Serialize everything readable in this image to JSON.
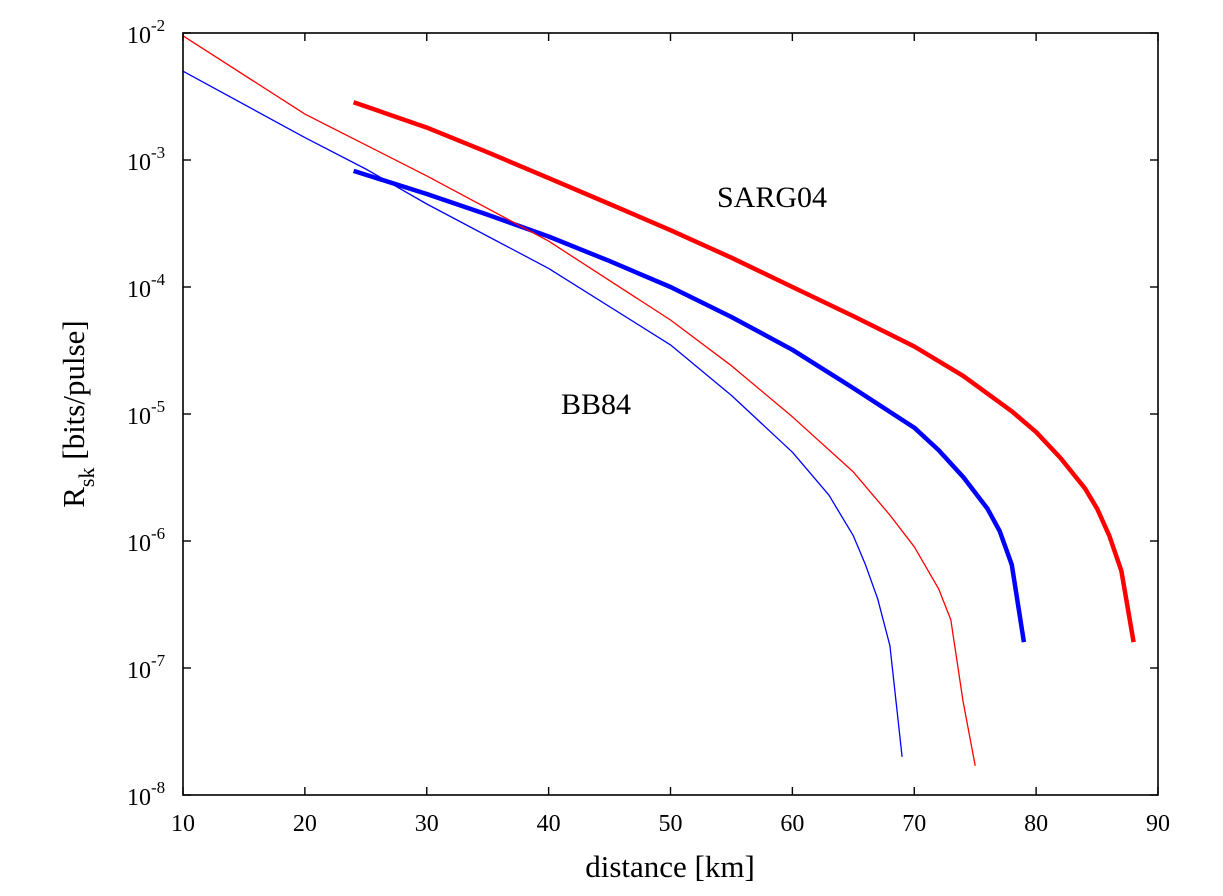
{
  "chart_data": {
    "type": "line",
    "xlabel": "distance [km]",
    "ylabel": {
      "main": "R",
      "subscript": "sk",
      "rest": " [bits/pulse]"
    },
    "xlim": [
      10,
      90
    ],
    "ylim": [
      1e-08,
      0.01
    ],
    "yscale": "log",
    "grid": false,
    "legend": "none",
    "x_ticks": [
      "10",
      "20",
      "30",
      "40",
      "50",
      "60",
      "70",
      "80",
      "90"
    ],
    "y_ticks": [
      {
        "base": "10",
        "exp": "-8",
        "value": 1e-08
      },
      {
        "base": "10",
        "exp": "-7",
        "value": 1e-07
      },
      {
        "base": "10",
        "exp": "-6",
        "value": 1e-06
      },
      {
        "base": "10",
        "exp": "-5",
        "value": 1e-05
      },
      {
        "base": "10",
        "exp": "-4",
        "value": 0.0001
      },
      {
        "base": "10",
        "exp": "-3",
        "value": 0.001
      },
      {
        "base": "10",
        "exp": "-2",
        "value": 0.01
      }
    ],
    "annotations": [
      {
        "id": "sarg",
        "text": "SARG04",
        "x": 62,
        "y": 0.00045
      },
      {
        "id": "bb84",
        "text": "BB84",
        "x": 46,
        "y": 1.05e-05
      }
    ],
    "series": [
      {
        "id": "sarg-thick",
        "color": "#ff0000",
        "width": 4.5,
        "points": [
          [
            24,
            0.00285
          ],
          [
            30,
            0.0018
          ],
          [
            35,
            0.00115
          ],
          [
            40,
            0.00072
          ],
          [
            45,
            0.00045
          ],
          [
            50,
            0.00028
          ],
          [
            55,
            0.00017
          ],
          [
            60,
            0.0001
          ],
          [
            65,
            5.9e-05
          ],
          [
            70,
            3.4e-05
          ],
          [
            74,
            2e-05
          ],
          [
            78,
            1.05e-05
          ],
          [
            80,
            7.2e-06
          ],
          [
            82,
            4.5e-06
          ],
          [
            84,
            2.6e-06
          ],
          [
            85,
            1.8e-06
          ],
          [
            86,
            1.1e-06
          ],
          [
            87,
            5.8e-07
          ],
          [
            88,
            1.6e-07
          ]
        ]
      },
      {
        "id": "bb84-thick",
        "color": "#0000ff",
        "width": 4.5,
        "points": [
          [
            24,
            0.00082
          ],
          [
            30,
            0.00054
          ],
          [
            35,
            0.00037
          ],
          [
            40,
            0.00025
          ],
          [
            45,
            0.00016
          ],
          [
            50,
            0.0001
          ],
          [
            55,
            5.8e-05
          ],
          [
            60,
            3.2e-05
          ],
          [
            65,
            1.6e-05
          ],
          [
            70,
            7.8e-06
          ],
          [
            72,
            5.2e-06
          ],
          [
            74,
            3.2e-06
          ],
          [
            76,
            1.8e-06
          ],
          [
            77,
            1.2e-06
          ],
          [
            78,
            6.5e-07
          ],
          [
            79,
            1.6e-07
          ]
        ]
      },
      {
        "id": "sarg-thin",
        "color": "#ff0000",
        "width": 1.3,
        "points": [
          [
            10,
            0.0095
          ],
          [
            20,
            0.0023
          ],
          [
            30,
            0.00075
          ],
          [
            40,
            0.00023
          ],
          [
            50,
            5.5e-05
          ],
          [
            55,
            2.4e-05
          ],
          [
            60,
            9.5e-06
          ],
          [
            65,
            3.5e-06
          ],
          [
            68,
            1.6e-06
          ],
          [
            70,
            9e-07
          ],
          [
            72,
            4.2e-07
          ],
          [
            73,
            2.4e-07
          ],
          [
            74,
            5.5e-08
          ],
          [
            75,
            1.7e-08
          ]
        ]
      },
      {
        "id": "bb84-thin",
        "color": "#0000ff",
        "width": 1.3,
        "points": [
          [
            10,
            0.005
          ],
          [
            20,
            0.0015
          ],
          [
            25,
            0.00085
          ],
          [
            30,
            0.00045
          ],
          [
            40,
            0.00014
          ],
          [
            50,
            3.5e-05
          ],
          [
            55,
            1.4e-05
          ],
          [
            60,
            5e-06
          ],
          [
            63,
            2.3e-06
          ],
          [
            65,
            1.1e-06
          ],
          [
            66,
            6.5e-07
          ],
          [
            67,
            3.5e-07
          ],
          [
            68,
            1.5e-07
          ],
          [
            69,
            2e-08
          ]
        ]
      }
    ]
  }
}
